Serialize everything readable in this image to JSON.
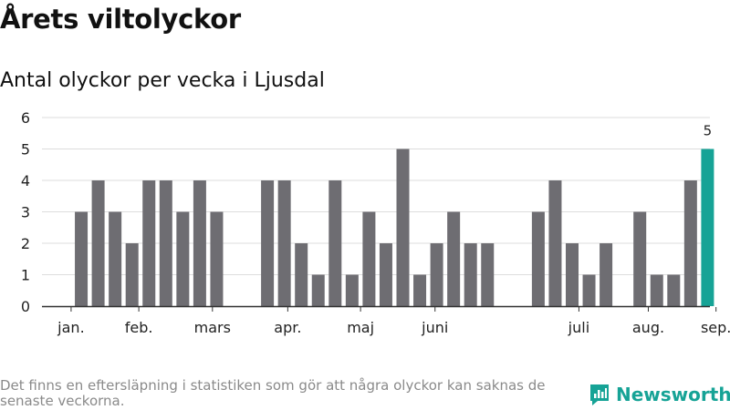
{
  "title": "Årets viltolyckor",
  "subtitle": "Antal olyckor per vecka i Ljusdal",
  "footnote": "Det finns en eftersläpning i statistiken som gör att några olyckor kan saknas de senaste veckorna.",
  "brand": {
    "name": "Newsworthy",
    "icon": "newsworthy-logo-icon"
  },
  "colors": {
    "bar": "#6e6d72",
    "highlight": "#16a396",
    "grid": "#dddddd",
    "axis": "#333333"
  },
  "chart_data": {
    "type": "bar",
    "title": "Årets viltolyckor",
    "subtitle": "Antal olyckor per vecka i Ljusdal",
    "xlabel": "",
    "ylabel": "",
    "ylim": [
      0,
      6
    ],
    "yticks": [
      0,
      1,
      2,
      3,
      4,
      5,
      6
    ],
    "grid": true,
    "weeks": [
      1,
      2,
      3,
      4,
      5,
      6,
      7,
      8,
      9,
      10,
      11,
      12,
      13,
      14,
      15,
      16,
      17,
      18,
      19,
      20,
      21,
      22,
      23,
      24,
      25,
      26,
      27,
      28,
      29,
      30,
      31,
      32,
      33,
      34,
      35,
      36,
      37,
      38,
      39
    ],
    "values": [
      0,
      3,
      4,
      3,
      2,
      4,
      4,
      3,
      4,
      3,
      0,
      0,
      4,
      4,
      2,
      1,
      4,
      1,
      3,
      2,
      5,
      1,
      2,
      3,
      2,
      2,
      0,
      0,
      3,
      4,
      2,
      1,
      2,
      0,
      3,
      1,
      1,
      4,
      5
    ],
    "highlight_index": 38,
    "highlight_label": "5",
    "month_labels": [
      {
        "label": "jan.",
        "week": 1.4
      },
      {
        "label": "feb.",
        "week": 5.4
      },
      {
        "label": "mars",
        "week": 9.75
      },
      {
        "label": "apr.",
        "week": 14.2
      },
      {
        "label": "maj",
        "week": 18.5
      },
      {
        "label": "juni",
        "week": 22.9
      },
      {
        "label": "juli",
        "week": 31.4
      },
      {
        "label": "aug.",
        "week": 35.5
      },
      {
        "label": "sep.",
        "week": 39.5
      }
    ]
  }
}
